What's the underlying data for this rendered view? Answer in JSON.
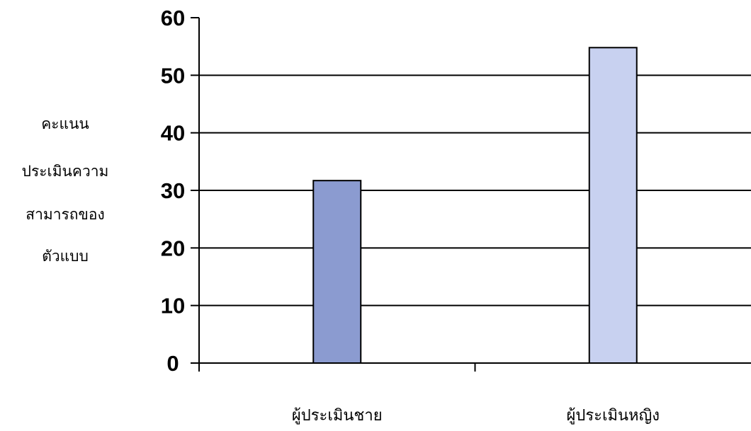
{
  "chart_data": {
    "type": "bar",
    "title": "",
    "xlabel": "",
    "ylabel_lines": [
      "คะแนน",
      "ประเมินความ",
      "สามารถของ",
      "ตัวแบบ"
    ],
    "categories": [
      "ผู้ประเมินชาย",
      "ผู้ประเมินหญิง"
    ],
    "values": [
      31.7,
      54.8
    ],
    "colors": [
      "#8b9bd0",
      "#c8d1f0"
    ],
    "ylim": [
      0,
      60
    ],
    "yticks": [
      0,
      10,
      20,
      30,
      40,
      50,
      60
    ],
    "grid": true,
    "legend": "none"
  }
}
